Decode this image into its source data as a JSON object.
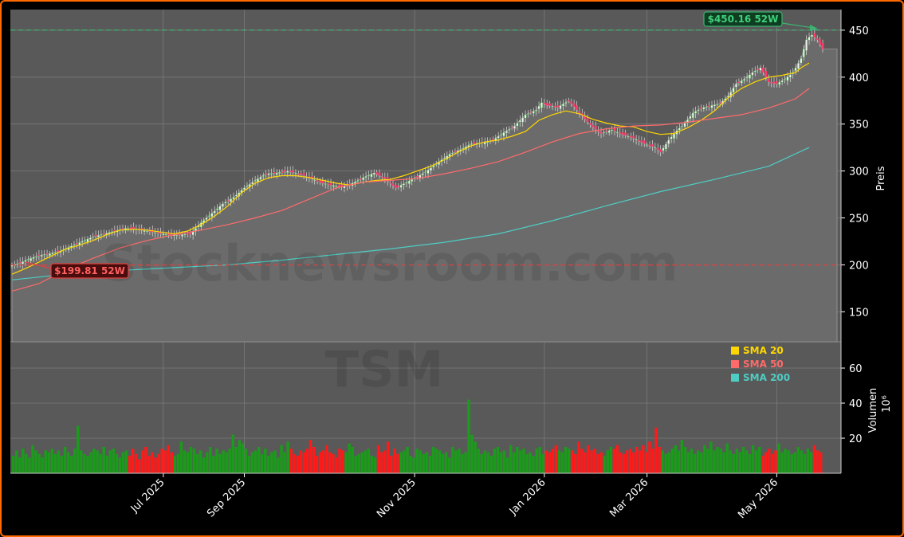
{
  "watermark": {
    "site": "Stocknewsroom.com",
    "ticker": "TSM"
  },
  "colors": {
    "frame": "#ff6a00",
    "panel": "#595959",
    "area": "#6b6b6b",
    "up": "#1a9c1a",
    "down": "#ff1a1a",
    "sma20": "#ffd700",
    "sma50": "#ff6b6b",
    "sma200": "#4ecdc4",
    "high_line": "#3cb371",
    "low_line": "#e04040"
  },
  "chart_data": {
    "type": "line",
    "panels": [
      "price",
      "volume"
    ],
    "x_ticks": [
      "Jul 2025",
      "Sep 2025",
      "Nov 2025",
      "Jan 2026",
      "Mar 2026",
      "May 2026"
    ],
    "price_axis": {
      "label": "Preis",
      "ticks": [
        150,
        200,
        250,
        300,
        350,
        400,
        450
      ],
      "ylim": [
        118,
        472
      ]
    },
    "volume_axis": {
      "label": "Volumen",
      "unit": "10⁶",
      "ticks": [
        20,
        40,
        60
      ],
      "ylim": [
        0,
        75
      ]
    },
    "annotations": {
      "high_52w": {
        "value": 450.16,
        "label": "$450.16 52W"
      },
      "low_52w": {
        "value": 199.81,
        "label": "$199.81 52W"
      }
    },
    "legend": {
      "position": "lower-right of price panel",
      "entries": [
        "SMA 20",
        "SMA 50",
        "SMA 200"
      ]
    },
    "series": [
      {
        "name": "SMA 20",
        "points": [
          [
            0,
            190
          ],
          [
            5,
            196
          ],
          [
            10,
            203
          ],
          [
            15,
            210
          ],
          [
            20,
            217
          ],
          [
            25,
            221
          ],
          [
            30,
            226
          ],
          [
            35,
            232
          ],
          [
            40,
            237
          ],
          [
            45,
            238
          ],
          [
            50,
            237
          ],
          [
            55,
            235
          ],
          [
            60,
            233
          ],
          [
            65,
            236
          ],
          [
            70,
            243
          ],
          [
            75,
            252
          ],
          [
            80,
            263
          ],
          [
            85,
            277
          ],
          [
            90,
            287
          ],
          [
            95,
            293
          ],
          [
            100,
            295
          ],
          [
            105,
            295
          ],
          [
            110,
            293
          ],
          [
            115,
            290
          ],
          [
            120,
            287
          ],
          [
            125,
            285
          ],
          [
            130,
            288
          ],
          [
            135,
            290
          ],
          [
            140,
            291
          ],
          [
            145,
            295
          ],
          [
            150,
            300
          ],
          [
            155,
            305
          ],
          [
            160,
            312
          ],
          [
            165,
            320
          ],
          [
            170,
            327
          ],
          [
            175,
            331
          ],
          [
            180,
            333
          ],
          [
            185,
            337
          ],
          [
            190,
            342
          ],
          [
            195,
            354
          ],
          [
            200,
            360
          ],
          [
            205,
            364
          ],
          [
            210,
            361
          ],
          [
            215,
            355
          ],
          [
            220,
            351
          ],
          [
            225,
            348
          ],
          [
            230,
            347
          ],
          [
            235,
            342
          ],
          [
            240,
            339
          ],
          [
            245,
            340
          ],
          [
            250,
            346
          ],
          [
            255,
            354
          ],
          [
            260,
            364
          ],
          [
            265,
            378
          ],
          [
            270,
            388
          ],
          [
            275,
            395
          ],
          [
            280,
            400
          ],
          [
            285,
            402
          ],
          [
            290,
            405
          ],
          [
            292,
            410
          ],
          [
            295,
            415
          ]
        ]
      },
      {
        "name": "SMA 50",
        "points": [
          [
            0,
            172
          ],
          [
            10,
            180
          ],
          [
            20,
            195
          ],
          [
            30,
            207
          ],
          [
            40,
            218
          ],
          [
            50,
            226
          ],
          [
            60,
            232
          ],
          [
            70,
            237
          ],
          [
            80,
            243
          ],
          [
            90,
            250
          ],
          [
            100,
            258
          ],
          [
            110,
            270
          ],
          [
            120,
            282
          ],
          [
            130,
            288
          ],
          [
            140,
            290
          ],
          [
            150,
            292
          ],
          [
            160,
            297
          ],
          [
            170,
            303
          ],
          [
            180,
            310
          ],
          [
            190,
            320
          ],
          [
            200,
            331
          ],
          [
            210,
            340
          ],
          [
            220,
            345
          ],
          [
            230,
            348
          ],
          [
            240,
            349
          ],
          [
            250,
            352
          ],
          [
            260,
            356
          ],
          [
            270,
            360
          ],
          [
            280,
            367
          ],
          [
            290,
            377
          ],
          [
            295,
            388
          ]
        ]
      },
      {
        "name": "SMA 200",
        "points": [
          [
            0,
            184
          ],
          [
            20,
            190
          ],
          [
            40,
            194
          ],
          [
            60,
            197
          ],
          [
            80,
            200
          ],
          [
            100,
            205
          ],
          [
            120,
            211
          ],
          [
            140,
            217
          ],
          [
            160,
            224
          ],
          [
            180,
            233
          ],
          [
            200,
            247
          ],
          [
            220,
            263
          ],
          [
            240,
            278
          ],
          [
            260,
            291
          ],
          [
            280,
            305
          ],
          [
            295,
            325
          ]
        ]
      }
    ],
    "price_close_outline": [
      [
        0,
        200
      ],
      [
        3,
        202
      ],
      [
        6,
        206
      ],
      [
        10,
        210
      ],
      [
        14,
        212
      ],
      [
        18,
        215
      ],
      [
        22,
        220
      ],
      [
        26,
        225
      ],
      [
        30,
        230
      ],
      [
        34,
        233
      ],
      [
        38,
        236
      ],
      [
        42,
        239
      ],
      [
        46,
        238
      ],
      [
        50,
        236
      ],
      [
        54,
        234
      ],
      [
        58,
        232
      ],
      [
        62,
        232
      ],
      [
        66,
        233
      ],
      [
        70,
        245
      ],
      [
        74,
        255
      ],
      [
        78,
        265
      ],
      [
        82,
        272
      ],
      [
        86,
        282
      ],
      [
        90,
        290
      ],
      [
        94,
        297
      ],
      [
        98,
        298
      ],
      [
        102,
        300
      ],
      [
        106,
        297
      ],
      [
        110,
        293
      ],
      [
        114,
        288
      ],
      [
        118,
        285
      ],
      [
        122,
        283
      ],
      [
        126,
        287
      ],
      [
        130,
        293
      ],
      [
        134,
        298
      ],
      [
        138,
        292
      ],
      [
        142,
        282
      ],
      [
        146,
        288
      ],
      [
        150,
        294
      ],
      [
        154,
        301
      ],
      [
        158,
        310
      ],
      [
        162,
        318
      ],
      [
        166,
        323
      ],
      [
        170,
        329
      ],
      [
        174,
        330
      ],
      [
        178,
        333
      ],
      [
        182,
        341
      ],
      [
        186,
        348
      ],
      [
        190,
        360
      ],
      [
        194,
        365
      ],
      [
        196,
        373
      ],
      [
        198,
        370
      ],
      [
        202,
        368
      ],
      [
        206,
        375
      ],
      [
        210,
        362
      ],
      [
        214,
        349
      ],
      [
        218,
        340
      ],
      [
        222,
        344
      ],
      [
        226,
        339
      ],
      [
        230,
        335
      ],
      [
        234,
        329
      ],
      [
        238,
        325
      ],
      [
        240,
        320
      ],
      [
        243,
        333
      ],
      [
        246,
        343
      ],
      [
        249,
        351
      ],
      [
        252,
        362
      ],
      [
        255,
        367
      ],
      [
        258,
        369
      ],
      [
        262,
        372
      ],
      [
        265,
        380
      ],
      [
        268,
        393
      ],
      [
        271,
        398
      ],
      [
        274,
        405
      ],
      [
        277,
        410
      ],
      [
        280,
        395
      ],
      [
        283,
        393
      ],
      [
        286,
        398
      ],
      [
        289,
        405
      ],
      [
        292,
        420
      ],
      [
        294,
        440
      ],
      [
        296,
        445
      ],
      [
        298,
        440
      ],
      [
        300,
        430
      ]
    ],
    "volume_millions": [
      10,
      13,
      9,
      14,
      11,
      9,
      16,
      13,
      11,
      9,
      13,
      12,
      14,
      11,
      13,
      10,
      15,
      12,
      10,
      14,
      27,
      13,
      11,
      10,
      12,
      14,
      13,
      11,
      15,
      10,
      13,
      14,
      11,
      9,
      12,
      13,
      10,
      14,
      11,
      8,
      13,
      15,
      10,
      12,
      9,
      11,
      14,
      13,
      16,
      12,
      10,
      11,
      18,
      13,
      12,
      15,
      14,
      11,
      13,
      9,
      12,
      15,
      10,
      14,
      11,
      13,
      12,
      14,
      22,
      15,
      19,
      17,
      14,
      10,
      12,
      13,
      15,
      11,
      14,
      10,
      12,
      13,
      9,
      16,
      12,
      18,
      14,
      11,
      10,
      13,
      12,
      14,
      19,
      15,
      10,
      12,
      13,
      16,
      12,
      11,
      9,
      14,
      13,
      12,
      17,
      15,
      10,
      11,
      12,
      13,
      14,
      10,
      9,
      16,
      12,
      13,
      18,
      10,
      14,
      11,
      12,
      13,
      15,
      10,
      9,
      14,
      13,
      11,
      12,
      10,
      15,
      14,
      13,
      11,
      12,
      9,
      15,
      13,
      14,
      11,
      12,
      42,
      22,
      18,
      14,
      11,
      13,
      12,
      10,
      14,
      15,
      12,
      13,
      9,
      16,
      12,
      15,
      13,
      14,
      11,
      12,
      10,
      14,
      15,
      11,
      13,
      12,
      14,
      16,
      13,
      12,
      15,
      14,
      13,
      11,
      18,
      14,
      12,
      16,
      13,
      14,
      11,
      12,
      10,
      13,
      15,
      14,
      16,
      12,
      11,
      13,
      14,
      12,
      15,
      13,
      16,
      12,
      18,
      14,
      26,
      15,
      13,
      11,
      12,
      14,
      16,
      13,
      19,
      15,
      12,
      14,
      11,
      13,
      12,
      16,
      14,
      18,
      13,
      15,
      14,
      12,
      17,
      13,
      11,
      14,
      12,
      15,
      13,
      11,
      16,
      13,
      15,
      10,
      12,
      14,
      11,
      13,
      17,
      12,
      14,
      13,
      11,
      12,
      15,
      13,
      11,
      14,
      12,
      16,
      13,
      12
    ]
  }
}
